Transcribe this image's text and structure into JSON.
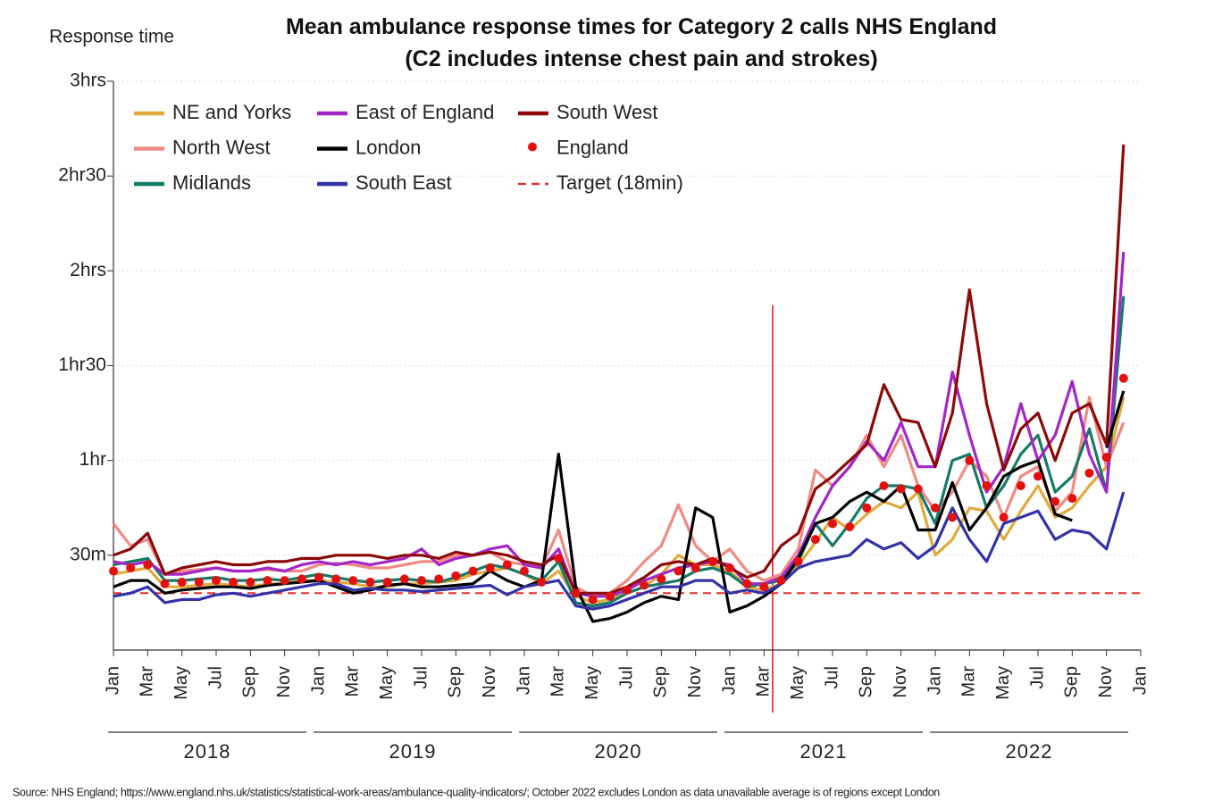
{
  "chart_data": {
    "type": "line",
    "title": "Mean ambulance response times for Category 2 calls NHS England (C2 includes intense chest pain and strokes)",
    "y_label": "Response time",
    "source": "Source: NHS England; https://www.england.nhs.uk/statistics/statistical-work-areas/ambulance-quality-indicators/; October 2022 excludes London as data unavailable average is of regions except London",
    "categories": [
      "Jan",
      null,
      "Mar",
      null,
      "May",
      null,
      "Jul",
      null,
      "Sep",
      null,
      "Nov",
      null,
      "Jan",
      null,
      "Mar",
      null,
      "May",
      null,
      "Jul",
      null,
      "Sep",
      null,
      "Nov",
      null,
      "Jan",
      null,
      "Mar",
      null,
      "May",
      null,
      "Jul",
      null,
      "Sep",
      null,
      "Nov",
      null,
      "Jan",
      null,
      "Mar",
      null,
      "May",
      null,
      "Jul",
      null,
      "Sep",
      null,
      "Nov",
      null,
      "Jan",
      null,
      "Mar",
      null,
      "May",
      null,
      "Jul",
      null,
      "Sep",
      null,
      "Nov",
      null,
      "Jan"
    ],
    "year_labels": [
      "2018",
      "2019",
      "2020",
      "2021",
      "2022"
    ],
    "ylim": [
      0,
      180
    ],
    "yticks": [
      {
        "value": 30,
        "label": "30m"
      },
      {
        "value": 60,
        "label": "1hr"
      },
      {
        "value": 90,
        "label": "1hr30"
      },
      {
        "value": 120,
        "label": "2hrs"
      },
      {
        "value": 150,
        "label": "2hr30"
      },
      {
        "value": 180,
        "label": "3hrs"
      }
    ],
    "grid": true,
    "series": [
      {
        "name": "NE and Yorks",
        "color": "#e0aa3e",
        "values": [
          24,
          25,
          26,
          20,
          20,
          20.5,
          21,
          20.5,
          20,
          21,
          21,
          22,
          22,
          21.5,
          21,
          20,
          20,
          21,
          21,
          21.5,
          22,
          24,
          25,
          26,
          24,
          21,
          25,
          17,
          15,
          16,
          18,
          20,
          24,
          30,
          27,
          27,
          25,
          20,
          19,
          21,
          27,
          34,
          42,
          38,
          43,
          47,
          45,
          50,
          30,
          35,
          45,
          44,
          35,
          44,
          52,
          42,
          45,
          52,
          58,
          80,
          null
        ]
      },
      {
        "name": "North West",
        "color": "#f08a84",
        "values": [
          40,
          33,
          35,
          24,
          25,
          25.5,
          26,
          25,
          25,
          25.5,
          25,
          25,
          27,
          27.5,
          27,
          26,
          26,
          27,
          28,
          28,
          30,
          30,
          31,
          28,
          27,
          26,
          38,
          20,
          17,
          18,
          22,
          28,
          33,
          46,
          33,
          28,
          32,
          25,
          22,
          24,
          32,
          57,
          52,
          58,
          68,
          58,
          68,
          52,
          44,
          50,
          60,
          55,
          42,
          55,
          58,
          44,
          50,
          80,
          58,
          72,
          null
        ]
      },
      {
        "name": "Midlands",
        "color": "#177a68",
        "values": [
          27,
          28,
          29,
          22,
          22,
          22.5,
          23,
          22,
          22,
          22.5,
          22,
          23,
          24,
          23,
          22,
          21.5,
          22,
          22.5,
          22,
          21.5,
          23,
          25,
          27,
          26,
          24,
          22,
          28,
          15,
          14,
          15,
          18,
          20,
          21,
          22,
          25,
          26,
          24,
          20,
          21,
          22,
          28,
          40,
          33,
          40,
          48,
          52,
          52,
          51,
          40,
          60,
          62,
          45,
          52,
          62,
          68,
          50,
          55,
          70,
          50,
          112,
          null
        ]
      },
      {
        "name": "East of England",
        "color": "#a426c8",
        "values": [
          28,
          27,
          28,
          24,
          24,
          25,
          26,
          25,
          25,
          26,
          25,
          27,
          28,
          27,
          28,
          27,
          28,
          29,
          32,
          27,
          29,
          30,
          32,
          33,
          27,
          26,
          32,
          18,
          17,
          17,
          19,
          22,
          24,
          26,
          27,
          28,
          27,
          21,
          21,
          23,
          30,
          42,
          52,
          58,
          66,
          60,
          72,
          58,
          58,
          88,
          68,
          50,
          58,
          78,
          60,
          68,
          85,
          62,
          50,
          126,
          null
        ]
      },
      {
        "name": "London",
        "color": "#000000",
        "values": [
          20,
          22,
          22,
          18,
          19,
          19.5,
          20,
          20,
          19.5,
          20.5,
          21,
          21.5,
          22,
          20,
          18,
          19,
          20.5,
          21,
          20,
          20,
          20.5,
          21,
          25,
          22,
          20,
          22,
          62,
          20,
          9,
          10,
          12,
          15,
          17,
          16,
          45,
          42,
          12,
          14,
          17,
          21,
          29,
          40,
          42,
          47,
          50,
          47,
          52,
          38,
          38,
          53,
          38,
          45,
          55,
          58,
          60,
          43,
          41,
          null,
          64,
          82,
          null
        ]
      },
      {
        "name": "South East",
        "color": "#3333a8",
        "values": [
          17,
          18,
          20,
          15,
          16,
          16,
          17.5,
          18,
          17,
          18,
          19,
          20,
          21,
          21,
          19,
          19.5,
          19,
          19,
          18.5,
          19,
          19.5,
          20,
          20.5,
          17.5,
          20,
          21,
          22,
          14,
          13,
          14,
          16,
          18,
          20,
          20,
          22,
          22,
          18,
          19,
          18,
          21,
          26,
          28,
          29,
          30,
          35,
          32,
          34,
          29,
          33,
          45,
          35,
          28,
          40,
          42,
          44,
          35,
          38,
          37,
          32,
          50,
          null
        ]
      },
      {
        "name": "South West",
        "color": "#8b0a0a",
        "values": [
          30,
          32,
          37,
          24,
          26,
          27,
          28,
          27,
          27,
          28,
          28,
          29,
          29,
          30,
          30,
          30,
          29,
          30,
          30,
          29,
          31,
          30,
          31,
          30,
          28,
          27,
          30,
          18,
          18,
          18,
          20,
          23,
          27,
          28,
          27,
          29,
          26,
          23,
          25,
          33,
          37,
          51,
          55,
          60,
          65,
          84,
          73,
          72,
          58,
          75,
          114,
          78,
          57,
          70,
          75,
          60,
          75,
          78,
          65,
          160,
          null
        ]
      },
      {
        "name": "England",
        "color": "#e31010",
        "marker": "dot",
        "values": [
          25,
          26,
          27,
          21,
          21.5,
          21.5,
          22,
          21.5,
          21.5,
          22,
          22,
          22.5,
          23,
          22.5,
          22,
          21.5,
          21.5,
          22.5,
          22,
          22.5,
          23.5,
          25,
          26,
          27,
          25,
          21.5,
          29,
          18,
          16,
          17,
          19,
          20.5,
          22.5,
          25,
          26,
          28,
          26,
          21,
          20,
          22,
          28,
          35,
          40,
          39,
          45,
          52,
          51,
          51,
          45,
          42,
          60,
          52,
          42,
          52,
          55,
          47,
          48,
          56,
          61,
          86,
          null
        ]
      }
    ],
    "target": {
      "name": "Target (18min)",
      "value": 18,
      "color": "#e03030"
    }
  }
}
